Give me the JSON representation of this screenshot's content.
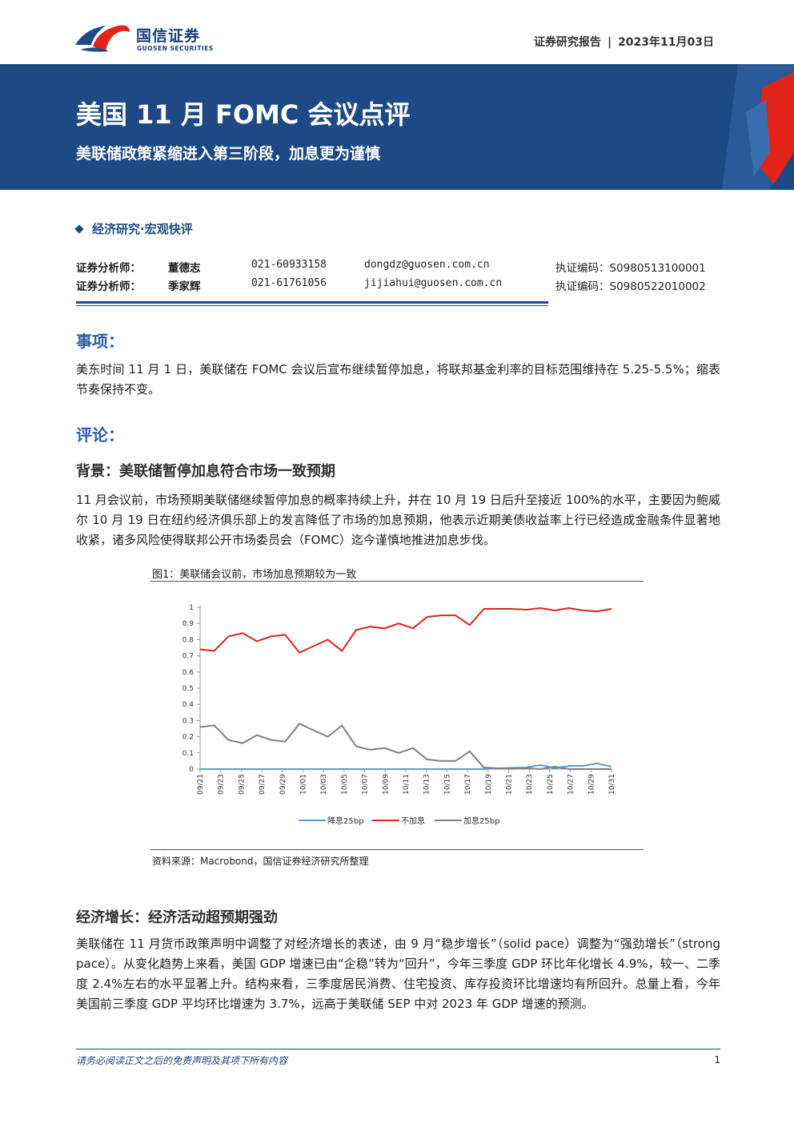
{
  "header": {
    "logo_cn": "国信证券",
    "logo_en": "GUOSEN SECURITIES",
    "report_type": "证券研究报告",
    "separator": "|",
    "date": "2023年11月03日"
  },
  "banner": {
    "title": "美国 11 月 FOMC 会议点评",
    "subtitle": "美联储政策紧缩进入第三阶段，加息更为谨慎"
  },
  "category": "经济研究·宏观快评",
  "analysts": [
    {
      "role": "证券分析师：",
      "name": "董德志",
      "phone": "021-60933158",
      "email": "dongdz@guosen.com.cn",
      "license": "执证编码：S0980513100001"
    },
    {
      "role": "证券分析师：",
      "name": "季家辉",
      "phone": "021-61761056",
      "email": "jijiahui@guosen.com.cn",
      "license": "执证编码：S0980522010002"
    }
  ],
  "sections": {
    "matter_title": "事项：",
    "matter_text": "美东时间 11 月 1 日，美联储在 FOMC 会议后宣布继续暂停加息，将联邦基金利率的目标范围维持在 5.25-5.5%；缩表节奏保持不变。",
    "comment_title": "评论：",
    "background_title": "背景：美联储暂停加息符合市场一致预期",
    "background_text": "11 月会议前，市场预期美联储继续暂停加息的概率持续上升，并在 10 月 19 日后升至接近 100%的水平，主要因为鲍威尔 10 月 19 日在纽约经济俱乐部上的发言降低了市场的加息预期，他表示近期美债收益率上行已经造成金融条件显著地收紧，诸多风险使得联邦公开市场委员会（FOMC）迄今谨慎地推进加息步伐。",
    "growth_title": "经济增长：经济活动超预期强劲",
    "growth_text": "美联储在 11 月货币政策声明中调整了对经济增长的表述，由 9 月“稳步增长”（solid pace）调整为“强劲增长”（strong pace）。从变化趋势上来看，美国 GDP 增速已由“企稳”转为“回升”，今年三季度 GDP 环比年化增长 4.9%，较一、二季度 2.4%左右的水平显著上升。结构来看，三季度居民消费、住宅投资、库存投资环比增速均有所回升。总量上看，今年美国前三季度 GDP 平均环比增速为 3.7%，远高于美联储 SEP 中对 2023 年 GDP 增速的预测。"
  },
  "figure": {
    "caption": "图1：美联储会议前，市场加息预期较为一致",
    "source": "资料来源：Macrobond，国信证券经济研究所整理"
  },
  "chart_data": {
    "type": "line",
    "title": "",
    "xlabel": "",
    "ylabel": "",
    "ylim": [
      0,
      1
    ],
    "yticks": [
      "0",
      "0.1",
      "0.2",
      "0.3",
      "0.4",
      "0.5",
      "0.6",
      "0.7",
      "0.8",
      "0.9",
      "1"
    ],
    "xtick_labels": [
      "09/21",
      "09/23",
      "09/25",
      "09/27",
      "09/29",
      "10/01",
      "10/03",
      "10/05",
      "10/07",
      "10/09",
      "10/11",
      "10/13",
      "10/15",
      "10/17",
      "10/19",
      "10/21",
      "10/23",
      "10/25",
      "10/27",
      "10/29",
      "10/31"
    ],
    "x": [
      "09/21",
      "09/22",
      "09/25",
      "09/26",
      "09/27",
      "09/28",
      "09/29",
      "10/02",
      "10/03",
      "10/04",
      "10/05",
      "10/06",
      "10/09",
      "10/10",
      "10/11",
      "10/12",
      "10/13",
      "10/16",
      "10/17",
      "10/18",
      "10/19",
      "10/20",
      "10/23",
      "10/24",
      "10/25",
      "10/26",
      "10/27",
      "10/30",
      "10/31",
      "11/01"
    ],
    "grid": false,
    "legend": "bottom",
    "series": [
      {
        "name": "降息25bp",
        "color": "#5b9bd5",
        "values": [
          0,
          0,
          0,
          0,
          0,
          0,
          0,
          0,
          0,
          0,
          0,
          0,
          0,
          0,
          0,
          0,
          0,
          0,
          0,
          0,
          0,
          0.005,
          0.008,
          0.01,
          0.025,
          0.005,
          0.02,
          0.02,
          0.035,
          0.015
        ]
      },
      {
        "name": "不加息",
        "color": "#e2231a",
        "values": [
          0.74,
          0.73,
          0.82,
          0.84,
          0.79,
          0.82,
          0.83,
          0.72,
          0.76,
          0.8,
          0.73,
          0.86,
          0.88,
          0.87,
          0.9,
          0.87,
          0.94,
          0.95,
          0.95,
          0.89,
          0.99,
          0.99,
          0.99,
          0.985,
          0.995,
          0.98,
          0.995,
          0.98,
          0.975,
          0.99
        ]
      },
      {
        "name": "加息25bp",
        "color": "#808080",
        "values": [
          0.26,
          0.27,
          0.18,
          0.16,
          0.21,
          0.18,
          0.17,
          0.28,
          0.24,
          0.2,
          0.27,
          0.14,
          0.12,
          0.13,
          0.1,
          0.13,
          0.06,
          0.05,
          0.05,
          0.11,
          0.01,
          0.005,
          0.002,
          0.005,
          0.0,
          0.015,
          0.0,
          0.0,
          0.0,
          0.0
        ]
      }
    ]
  },
  "footer": {
    "disclaimer": "请务必阅读正文之后的免责声明及其项下所有内容",
    "page": "1"
  }
}
